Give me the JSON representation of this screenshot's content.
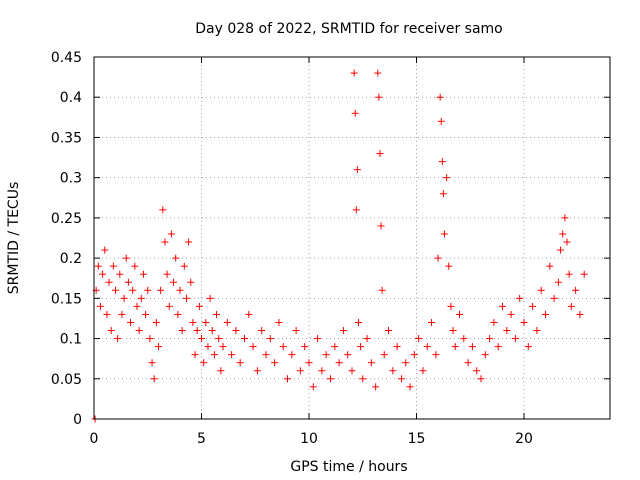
{
  "chart_data": {
    "type": "scatter",
    "title": "Day 028 of 2022, SRMTID for receiver samo",
    "xlabel": "GPS time / hours",
    "ylabel": "SRMTID / TECUs",
    "xlim": [
      0,
      24
    ],
    "ylim": [
      0,
      0.45
    ],
    "x_ticks": [
      0,
      5,
      10,
      15,
      20
    ],
    "x_tick_labels": [
      "0",
      "5",
      "10",
      "15",
      "20"
    ],
    "y_ticks": [
      0,
      0.05,
      0.1,
      0.15,
      0.2,
      0.25,
      0.3,
      0.35,
      0.4,
      0.45
    ],
    "y_tick_labels": [
      "0",
      "0.05",
      "0.1",
      "0.15",
      "0.2",
      "0.25",
      "0.3",
      "0.35",
      "0.4",
      "0.45"
    ],
    "grid": true,
    "marker": "+",
    "color": "#ff0000",
    "series": [
      {
        "name": "SRMTID",
        "x": [
          0.05,
          0.1,
          0.2,
          0.3,
          0.4,
          0.5,
          0.6,
          0.7,
          0.8,
          0.9,
          1.0,
          1.1,
          1.2,
          1.3,
          1.4,
          1.5,
          1.6,
          1.7,
          1.8,
          1.9,
          2.0,
          2.1,
          2.2,
          2.3,
          2.4,
          2.5,
          2.6,
          2.7,
          2.8,
          2.9,
          3.0,
          3.1,
          3.2,
          3.3,
          3.4,
          3.5,
          3.6,
          3.7,
          3.8,
          3.9,
          4.0,
          4.1,
          4.2,
          4.3,
          4.4,
          4.5,
          4.6,
          4.7,
          4.8,
          4.9,
          5.0,
          5.1,
          5.2,
          5.3,
          5.4,
          5.5,
          5.6,
          5.7,
          5.8,
          5.9,
          6.0,
          6.2,
          6.4,
          6.6,
          6.8,
          7.0,
          7.2,
          7.4,
          7.6,
          7.8,
          8.0,
          8.2,
          8.4,
          8.6,
          8.8,
          9.0,
          9.2,
          9.4,
          9.6,
          9.8,
          10.0,
          10.2,
          10.4,
          10.6,
          10.8,
          11.0,
          11.2,
          11.4,
          11.6,
          11.8,
          12.0,
          12.1,
          12.15,
          12.2,
          12.25,
          12.3,
          12.4,
          12.5,
          12.7,
          12.9,
          13.1,
          13.2,
          13.25,
          13.3,
          13.35,
          13.4,
          13.5,
          13.7,
          13.9,
          14.1,
          14.3,
          14.5,
          14.7,
          14.9,
          15.1,
          15.3,
          15.5,
          15.7,
          15.9,
          16.0,
          16.1,
          16.15,
          16.2,
          16.25,
          16.3,
          16.4,
          16.5,
          16.6,
          16.7,
          16.8,
          17.0,
          17.2,
          17.4,
          17.6,
          17.8,
          18.0,
          18.2,
          18.4,
          18.6,
          18.8,
          19.0,
          19.2,
          19.4,
          19.6,
          19.8,
          20.0,
          20.2,
          20.4,
          20.6,
          20.8,
          21.0,
          21.2,
          21.4,
          21.6,
          21.7,
          21.8,
          21.9,
          22.0,
          22.1,
          22.2,
          22.4,
          22.6,
          22.8
        ],
        "y": [
          0.0,
          0.16,
          0.19,
          0.14,
          0.18,
          0.21,
          0.13,
          0.17,
          0.11,
          0.19,
          0.16,
          0.1,
          0.18,
          0.13,
          0.15,
          0.2,
          0.17,
          0.12,
          0.16,
          0.19,
          0.14,
          0.11,
          0.15,
          0.18,
          0.13,
          0.16,
          0.1,
          0.07,
          0.05,
          0.12,
          0.09,
          0.16,
          0.26,
          0.22,
          0.18,
          0.14,
          0.23,
          0.17,
          0.2,
          0.13,
          0.16,
          0.11,
          0.19,
          0.15,
          0.22,
          0.17,
          0.12,
          0.08,
          0.11,
          0.14,
          0.1,
          0.07,
          0.12,
          0.09,
          0.15,
          0.11,
          0.08,
          0.13,
          0.1,
          0.06,
          0.09,
          0.12,
          0.08,
          0.11,
          0.07,
          0.1,
          0.13,
          0.09,
          0.06,
          0.11,
          0.08,
          0.1,
          0.07,
          0.12,
          0.09,
          0.05,
          0.08,
          0.11,
          0.06,
          0.09,
          0.07,
          0.04,
          0.1,
          0.06,
          0.08,
          0.05,
          0.09,
          0.07,
          0.11,
          0.08,
          0.06,
          0.43,
          0.38,
          0.26,
          0.31,
          0.12,
          0.09,
          0.05,
          0.1,
          0.07,
          0.04,
          0.43,
          0.4,
          0.33,
          0.24,
          0.16,
          0.08,
          0.11,
          0.06,
          0.09,
          0.05,
          0.07,
          0.04,
          0.08,
          0.1,
          0.06,
          0.09,
          0.12,
          0.08,
          0.2,
          0.4,
          0.37,
          0.32,
          0.28,
          0.23,
          0.3,
          0.19,
          0.14,
          0.11,
          0.09,
          0.13,
          0.1,
          0.07,
          0.09,
          0.06,
          0.05,
          0.08,
          0.1,
          0.12,
          0.09,
          0.14,
          0.11,
          0.13,
          0.1,
          0.15,
          0.12,
          0.09,
          0.14,
          0.11,
          0.16,
          0.13,
          0.19,
          0.15,
          0.17,
          0.21,
          0.23,
          0.25,
          0.22,
          0.18,
          0.14,
          0.16,
          0.13,
          0.18
        ]
      }
    ]
  }
}
